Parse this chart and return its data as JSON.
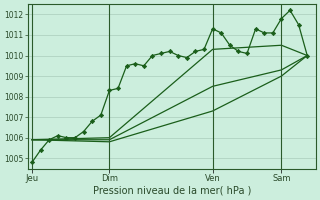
{
  "background_color": "#cceedd",
  "plot_bg_color": "#cceedd",
  "grid_color": "#aaccbb",
  "line_color": "#1a5e1a",
  "marker_color": "#1a5e1a",
  "xlabel": "Pression niveau de la mer( hPa )",
  "ylim": [
    1004.5,
    1012.5
  ],
  "yticks": [
    1005,
    1006,
    1007,
    1008,
    1009,
    1010,
    1011,
    1012
  ],
  "day_labels": [
    "Jeu",
    "Dim",
    "Ven",
    "Sam"
  ],
  "day_positions": [
    0,
    9,
    21,
    29
  ],
  "xlim": [
    -0.5,
    33
  ],
  "series1_x": [
    0,
    1,
    2,
    3,
    4,
    5,
    6,
    7,
    8,
    9,
    10,
    11,
    12,
    13,
    14,
    15,
    16,
    17,
    18,
    19,
    20,
    21,
    22,
    23,
    24,
    25,
    26,
    27,
    28,
    29,
    30,
    31,
    32
  ],
  "series1_y": [
    1004.8,
    1005.4,
    1005.9,
    1006.1,
    1006.0,
    1006.0,
    1006.3,
    1006.8,
    1007.1,
    1008.3,
    1008.4,
    1009.5,
    1009.6,
    1009.5,
    1010.0,
    1010.1,
    1010.2,
    1010.0,
    1009.9,
    1010.2,
    1010.3,
    1011.3,
    1011.1,
    1010.5,
    1010.2,
    1010.1,
    1011.3,
    1011.1,
    1011.1,
    1011.8,
    1012.2,
    1011.5,
    1010.0
  ],
  "series2_x": [
    0,
    9,
    21,
    29,
    32
  ],
  "series2_y": [
    1005.9,
    1006.0,
    1010.3,
    1010.5,
    1010.0
  ],
  "series3_x": [
    0,
    9,
    21,
    29,
    32
  ],
  "series3_y": [
    1005.9,
    1005.9,
    1008.5,
    1009.3,
    1010.0
  ],
  "series4_x": [
    0,
    9,
    21,
    29,
    32
  ],
  "series4_y": [
    1005.9,
    1005.8,
    1007.3,
    1009.0,
    1010.0
  ]
}
